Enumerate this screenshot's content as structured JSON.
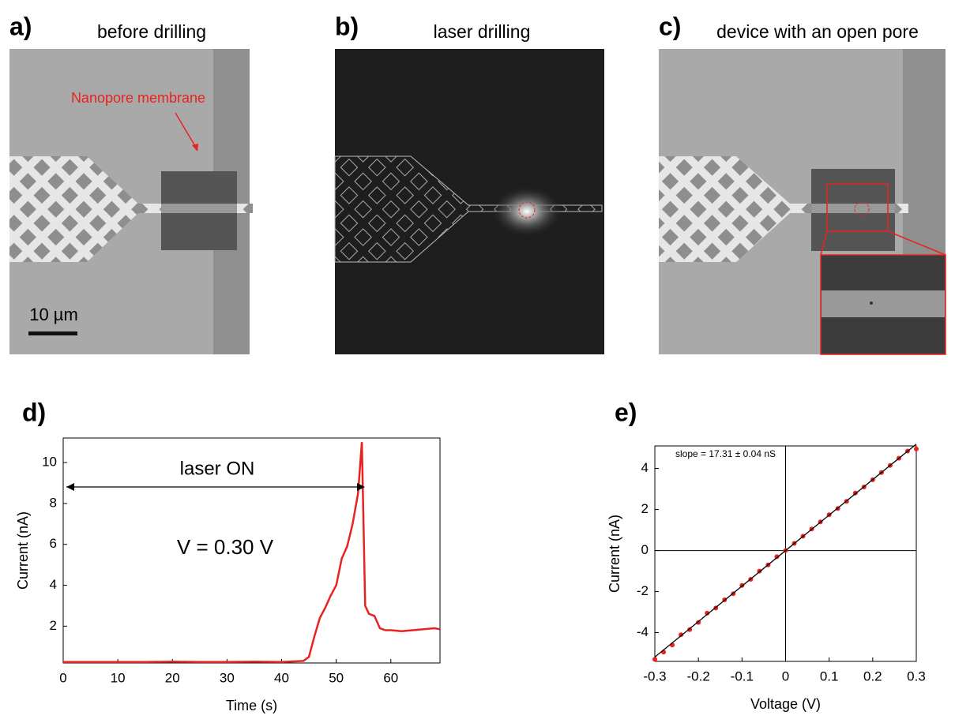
{
  "panels": [
    {
      "label": "a)",
      "title": "before drilling",
      "annotation": "Nanopore membrane",
      "scale_bar": "10 µm"
    },
    {
      "label": "b)",
      "title": "laser drilling"
    },
    {
      "label": "c)",
      "title": "device with an open pore"
    }
  ],
  "chart_data": [
    {
      "type": "line",
      "label": "d)",
      "xlabel": "Time (s)",
      "ylabel": "Current (nA)",
      "annotations": [
        "laser ON",
        "V = 0.30 V"
      ],
      "color": "#e8231f",
      "x": [
        0,
        5,
        10,
        15,
        20,
        25,
        30,
        35,
        40,
        44,
        45,
        46,
        47,
        48,
        49,
        50,
        51,
        52,
        53,
        54,
        54.7,
        55.3,
        56,
        57,
        58,
        59,
        60,
        62,
        64,
        66,
        68,
        69
      ],
      "values": [
        0.25,
        0.25,
        0.25,
        0.25,
        0.26,
        0.25,
        0.25,
        0.26,
        0.25,
        0.3,
        0.5,
        1.5,
        2.4,
        2.9,
        3.5,
        4.0,
        5.3,
        5.9,
        7.0,
        8.5,
        11.0,
        3.0,
        2.6,
        2.5,
        1.9,
        1.8,
        1.8,
        1.75,
        1.8,
        1.85,
        1.9,
        1.85
      ],
      "xlim": [
        0,
        69
      ],
      "ylim": [
        0.2,
        11.2
      ],
      "xticks": [
        0,
        10,
        20,
        30,
        40,
        50,
        60
      ],
      "yticks": [
        2,
        4,
        6,
        8,
        10
      ]
    },
    {
      "type": "scatter",
      "label": "e)",
      "xlabel": "Voltage (V)",
      "ylabel": "Current (nA)",
      "annotations": [
        "slope = 17.31 ± 0.04 nS"
      ],
      "color": "#e8231f",
      "x": [
        -0.3,
        -0.28,
        -0.26,
        -0.24,
        -0.22,
        -0.2,
        -0.18,
        -0.16,
        -0.14,
        -0.12,
        -0.1,
        -0.08,
        -0.06,
        -0.04,
        -0.02,
        0,
        0.02,
        0.04,
        0.06,
        0.08,
        0.1,
        0.12,
        0.14,
        0.16,
        0.18,
        0.2,
        0.22,
        0.24,
        0.26,
        0.28,
        0.3
      ],
      "values": [
        -5.3,
        -4.95,
        -4.6,
        -4.1,
        -3.85,
        -3.5,
        -3.05,
        -2.8,
        -2.4,
        -2.1,
        -1.7,
        -1.4,
        -1.0,
        -0.7,
        -0.3,
        0.0,
        0.35,
        0.7,
        1.05,
        1.4,
        1.75,
        2.05,
        2.4,
        2.8,
        3.1,
        3.45,
        3.8,
        4.15,
        4.5,
        4.85,
        4.95
      ],
      "fit": {
        "x": [
          -0.3,
          0.3
        ],
        "values": [
          -5.19,
          5.19
        ],
        "color": "#000000"
      },
      "xlim": [
        -0.3,
        0.3
      ],
      "ylim": [
        -5.4,
        5.1
      ],
      "xticks": [
        -0.3,
        -0.2,
        -0.1,
        0,
        0.1,
        0.2,
        0.3
      ],
      "yticks": [
        -4,
        -2,
        0,
        2,
        4
      ]
    }
  ]
}
